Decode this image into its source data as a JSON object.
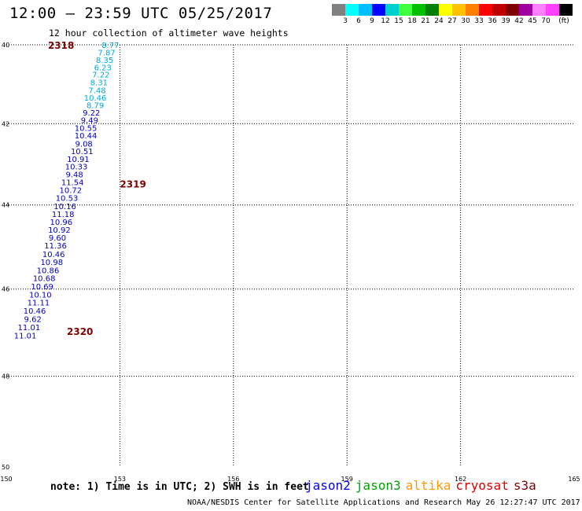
{
  "header": {
    "title": "12:00 — 23:59 UTC 05/25/2017",
    "subtitle": "12 hour collection of altimeter wave heights"
  },
  "colorbar": {
    "colors": [
      "#808080",
      "#00ffff",
      "#00bfff",
      "#0000ff",
      "#00cfcf",
      "#40ff40",
      "#00c000",
      "#008000",
      "#ffff00",
      "#ffc000",
      "#ff8000",
      "#ff0000",
      "#c00000",
      "#800000",
      "#a000a0",
      "#ff80ff",
      "#ff40ff",
      "#000000"
    ],
    "labels": [
      "3",
      "6",
      "9",
      "12",
      "15",
      "18",
      "21",
      "24",
      "27",
      "30",
      "33",
      "36",
      "39",
      "42",
      "45",
      "70",
      "(ft)"
    ]
  },
  "map": {
    "lon_range": [
      150,
      165
    ],
    "lat_range": [
      40,
      50
    ],
    "lon_ticks": [
      "150",
      "153",
      "156",
      "159",
      "162",
      "165"
    ],
    "lat_ticks": [
      "40",
      "42",
      "44",
      "46",
      "48",
      "50"
    ],
    "pass_labels": [
      {
        "text": "2318",
        "lon": 151.1,
        "lat": 40.0
      },
      {
        "text": "2319",
        "lon": 153.0,
        "lat": 43.48
      },
      {
        "text": "2320",
        "lon": 151.6,
        "lat": 46.97
      }
    ],
    "observations": [
      {
        "lon": 152.75,
        "lat": 40.0,
        "swh": "8.77",
        "color": "#00aadd"
      },
      {
        "lon": 152.65,
        "lat": 40.19,
        "swh": "7.87",
        "color": "#00aadd"
      },
      {
        "lon": 152.6,
        "lat": 40.38,
        "swh": "8.35",
        "color": "#00aadd"
      },
      {
        "lon": 152.55,
        "lat": 40.57,
        "swh": "6.23",
        "color": "#00aadd"
      },
      {
        "lon": 152.5,
        "lat": 40.76,
        "swh": "7.22",
        "color": "#00aadd"
      },
      {
        "lon": 152.45,
        "lat": 40.96,
        "swh": "8.31",
        "color": "#00aadd"
      },
      {
        "lon": 152.4,
        "lat": 41.15,
        "swh": "7.48",
        "color": "#00aadd"
      },
      {
        "lon": 152.35,
        "lat": 41.34,
        "swh": "10.46",
        "color": "#00aadd"
      },
      {
        "lon": 152.35,
        "lat": 41.53,
        "swh": "8.79",
        "color": "#00aadd"
      },
      {
        "lon": 152.25,
        "lat": 41.72,
        "swh": "9.22",
        "color": "#0000c0"
      },
      {
        "lon": 152.2,
        "lat": 41.91,
        "swh": "9.49",
        "color": "#0000c0"
      },
      {
        "lon": 152.1,
        "lat": 42.1,
        "swh": "10.55",
        "color": "#0000c0"
      },
      {
        "lon": 152.1,
        "lat": 42.29,
        "swh": "10.44",
        "color": "#0000c0"
      },
      {
        "lon": 152.05,
        "lat": 42.49,
        "swh": "9.08",
        "color": "#0000c0"
      },
      {
        "lon": 152.0,
        "lat": 42.68,
        "swh": "10.51",
        "color": "#0000c0"
      },
      {
        "lon": 151.9,
        "lat": 42.87,
        "swh": "10.91",
        "color": "#0000c0"
      },
      {
        "lon": 151.85,
        "lat": 43.06,
        "swh": "10.33",
        "color": "#0000c0"
      },
      {
        "lon": 151.8,
        "lat": 43.25,
        "swh": "9.48",
        "color": "#0000c0"
      },
      {
        "lon": 151.75,
        "lat": 43.44,
        "swh": "11.54",
        "color": "#0000c0"
      },
      {
        "lon": 151.7,
        "lat": 43.63,
        "swh": "10.72",
        "color": "#0000c0"
      },
      {
        "lon": 151.6,
        "lat": 43.82,
        "swh": "10.53",
        "color": "#0000c0"
      },
      {
        "lon": 151.55,
        "lat": 44.02,
        "swh": "10.16",
        "color": "#0000c0"
      },
      {
        "lon": 151.5,
        "lat": 44.21,
        "swh": "11.18",
        "color": "#0000c0"
      },
      {
        "lon": 151.45,
        "lat": 44.4,
        "swh": "10.96",
        "color": "#0000c0"
      },
      {
        "lon": 151.4,
        "lat": 44.59,
        "swh": "10.92",
        "color": "#0000c0"
      },
      {
        "lon": 151.35,
        "lat": 44.78,
        "swh": "9.60",
        "color": "#0000c0"
      },
      {
        "lon": 151.3,
        "lat": 44.97,
        "swh": "11.36",
        "color": "#0000c0"
      },
      {
        "lon": 151.25,
        "lat": 45.17,
        "swh": "10.46",
        "color": "#0000c0"
      },
      {
        "lon": 151.2,
        "lat": 45.36,
        "swh": "10.98",
        "color": "#0000c0"
      },
      {
        "lon": 151.1,
        "lat": 45.55,
        "swh": "10.86",
        "color": "#0000c0"
      },
      {
        "lon": 151.0,
        "lat": 45.74,
        "swh": "10.68",
        "color": "#0000c0"
      },
      {
        "lon": 150.95,
        "lat": 45.93,
        "swh": "10.69",
        "color": "#0000c0"
      },
      {
        "lon": 150.9,
        "lat": 46.12,
        "swh": "10.10",
        "color": "#0000c0"
      },
      {
        "lon": 150.85,
        "lat": 46.31,
        "swh": "11.11",
        "color": "#0000c0"
      },
      {
        "lon": 150.75,
        "lat": 46.5,
        "swh": "10.46",
        "color": "#0000c0"
      },
      {
        "lon": 150.7,
        "lat": 46.69,
        "swh": "9.62",
        "color": "#0000c0"
      },
      {
        "lon": 150.6,
        "lat": 46.88,
        "swh": "11.01",
        "color": "#0000c0"
      },
      {
        "lon": 150.5,
        "lat": 47.07,
        "swh": "11.01",
        "color": "#0000c0"
      }
    ]
  },
  "footer": {
    "note": "note: 1) Time is in UTC; 2) SWH is in feet",
    "satellites": [
      {
        "name": "jason2",
        "color": "#0000ff"
      },
      {
        "name": "jason3",
        "color": "#00a000"
      },
      {
        "name": "altika",
        "color": "#ff9900"
      },
      {
        "name": "cryosat",
        "color": "#dd0000"
      },
      {
        "name": "s3a",
        "color": "#800000"
      }
    ],
    "credit": "NOAA/NESDIS Center for Satellite Applications and Research    May 26 12:27:47 UTC 2017"
  }
}
